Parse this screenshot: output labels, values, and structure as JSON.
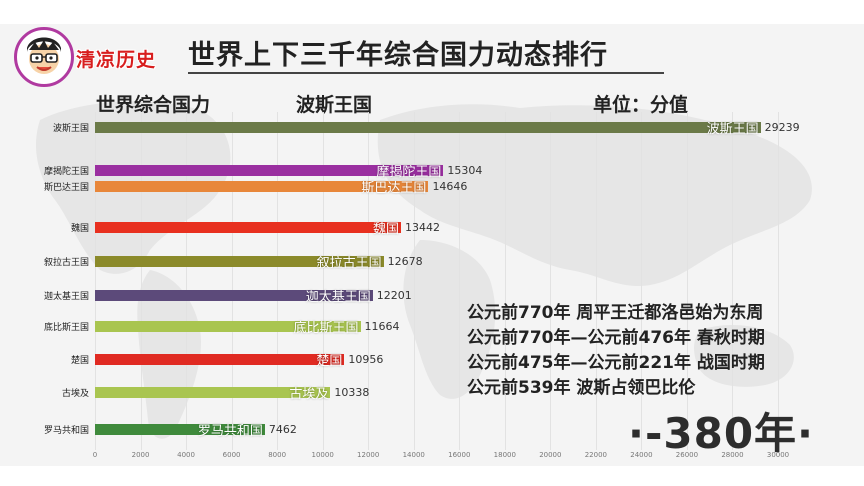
{
  "logo": {
    "icon": "cartoon-face-icon",
    "text": "清凉历史",
    "ring_color": "#b03aa0",
    "text_color": "#d81e1e"
  },
  "title": "世界上下三千年综合国力动态排行",
  "subheader": {
    "left": "世界综合国力",
    "leader": "波斯王国",
    "unit": "单位：分值"
  },
  "notes": [
    "公元前770年  周平王迁都洛邑始为东周",
    "公元前770年—公元前476年  春秋时期",
    "公元前475年—公元前221年  战国时期",
    "公元前539年  波斯占领巴比伦"
  ],
  "year_label": "·-380年·",
  "chart_data": {
    "type": "bar",
    "orientation": "horizontal",
    "title": "",
    "xlabel": "",
    "ylabel": "",
    "xlim": [
      0,
      30000
    ],
    "x_ticks": [
      "0",
      "2000",
      "4000",
      "6000",
      "8000",
      "10000",
      "12000",
      "14000",
      "16000",
      "18000",
      "20000",
      "22000",
      "24000",
      "26000",
      "28000",
      "30000"
    ],
    "grid": true,
    "categories": [
      "波斯王国",
      "摩揭陀王国",
      "斯巴达王国",
      "魏国",
      "叙拉古王国",
      "迦太基王国",
      "底比斯王国",
      "楚国",
      "古埃及",
      "罗马共和国"
    ],
    "values": [
      29239,
      15304,
      14646,
      13442,
      12678,
      12201,
      11664,
      10956,
      10338,
      7462
    ],
    "value_labels": [
      "29239",
      "15304",
      "14646",
      "13442",
      "12678",
      "12201",
      "11664",
      "10956",
      "10338",
      "7462"
    ],
    "colors": [
      "#6b7a48",
      "#9a2fa0",
      "#e8873a",
      "#e8301f",
      "#8b8a2a",
      "#5c4a7a",
      "#a9c550",
      "#e02a22",
      "#a9c550",
      "#3f8a3c"
    ]
  }
}
